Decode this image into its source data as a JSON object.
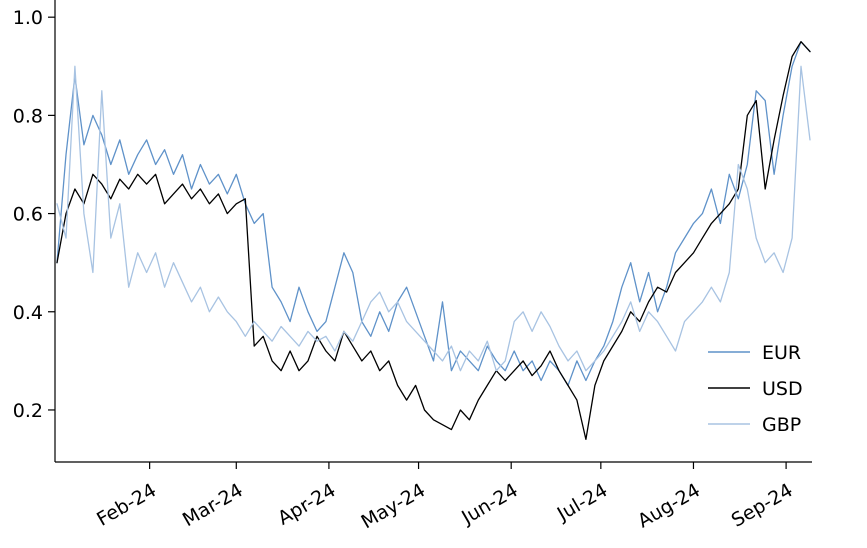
{
  "figure": {
    "background": "#ffffff",
    "axis_color": "#000000",
    "text_color": "#000000"
  },
  "chart_data": {
    "type": "line",
    "title": "",
    "xlabel": "",
    "ylabel": "",
    "grid": false,
    "legend": {
      "position": "lower-right",
      "frame": false
    },
    "x_unit": "days since Jan-1-2024",
    "x_domain_days": [
      0,
      252
    ],
    "x_step_days": 3,
    "ylim": [
      0.094,
      1.035
    ],
    "y_ticks": [
      0.2,
      0.4,
      0.6,
      0.8,
      1.0
    ],
    "x_ticks": [
      {
        "label": "Feb-24",
        "day": 31
      },
      {
        "label": "Mar-24",
        "day": 60
      },
      {
        "label": "Apr-24",
        "day": 91
      },
      {
        "label": "May-24",
        "day": 121
      },
      {
        "label": "Jun-24",
        "day": 152
      },
      {
        "label": "Jul-24",
        "day": 182
      },
      {
        "label": "Aug-24",
        "day": 213
      },
      {
        "label": "Sep-24",
        "day": 244
      }
    ],
    "series": [
      {
        "name": "EUR",
        "color": "#5f92c9",
        "values": [
          0.5,
          0.72,
          0.88,
          0.74,
          0.8,
          0.76,
          0.7,
          0.75,
          0.68,
          0.72,
          0.75,
          0.7,
          0.73,
          0.68,
          0.72,
          0.65,
          0.7,
          0.66,
          0.68,
          0.64,
          0.68,
          0.62,
          0.58,
          0.6,
          0.45,
          0.42,
          0.38,
          0.45,
          0.4,
          0.36,
          0.38,
          0.45,
          0.52,
          0.48,
          0.38,
          0.35,
          0.4,
          0.36,
          0.42,
          0.45,
          0.4,
          0.35,
          0.3,
          0.42,
          0.28,
          0.32,
          0.3,
          0.28,
          0.33,
          0.3,
          0.28,
          0.32,
          0.28,
          0.3,
          0.26,
          0.3,
          0.28,
          0.25,
          0.3,
          0.26,
          0.3,
          0.33,
          0.38,
          0.45,
          0.5,
          0.42,
          0.48,
          0.4,
          0.45,
          0.52,
          0.55,
          0.58,
          0.6,
          0.65,
          0.58,
          0.68,
          0.63,
          0.7,
          0.85,
          0.83,
          0.68,
          0.8,
          0.9,
          0.95,
          0.93
        ]
      },
      {
        "name": "USD",
        "color": "#000000",
        "values": [
          0.5,
          0.6,
          0.65,
          0.62,
          0.68,
          0.66,
          0.63,
          0.67,
          0.65,
          0.68,
          0.66,
          0.68,
          0.62,
          0.64,
          0.66,
          0.63,
          0.65,
          0.62,
          0.64,
          0.6,
          0.62,
          0.63,
          0.33,
          0.35,
          0.3,
          0.28,
          0.32,
          0.28,
          0.3,
          0.35,
          0.32,
          0.3,
          0.36,
          0.33,
          0.3,
          0.32,
          0.28,
          0.3,
          0.25,
          0.22,
          0.25,
          0.2,
          0.18,
          0.17,
          0.16,
          0.2,
          0.18,
          0.22,
          0.25,
          0.28,
          0.26,
          0.28,
          0.3,
          0.27,
          0.29,
          0.32,
          0.28,
          0.25,
          0.22,
          0.14,
          0.25,
          0.3,
          0.33,
          0.36,
          0.4,
          0.38,
          0.42,
          0.45,
          0.44,
          0.48,
          0.5,
          0.52,
          0.55,
          0.58,
          0.6,
          0.62,
          0.65,
          0.8,
          0.83,
          0.65,
          0.75,
          0.84,
          0.92,
          0.95,
          0.93
        ]
      },
      {
        "name": "GBP",
        "color": "#a8c3e2",
        "values": [
          0.62,
          0.55,
          0.9,
          0.6,
          0.48,
          0.85,
          0.55,
          0.62,
          0.45,
          0.52,
          0.48,
          0.52,
          0.45,
          0.5,
          0.46,
          0.42,
          0.45,
          0.4,
          0.43,
          0.4,
          0.38,
          0.35,
          0.38,
          0.36,
          0.34,
          0.37,
          0.35,
          0.33,
          0.36,
          0.34,
          0.35,
          0.32,
          0.36,
          0.34,
          0.38,
          0.42,
          0.44,
          0.4,
          0.42,
          0.38,
          0.36,
          0.34,
          0.32,
          0.3,
          0.33,
          0.28,
          0.32,
          0.3,
          0.34,
          0.28,
          0.3,
          0.38,
          0.4,
          0.36,
          0.4,
          0.37,
          0.33,
          0.3,
          0.32,
          0.28,
          0.3,
          0.32,
          0.35,
          0.38,
          0.42,
          0.36,
          0.4,
          0.38,
          0.35,
          0.32,
          0.38,
          0.4,
          0.42,
          0.45,
          0.42,
          0.48,
          0.7,
          0.65,
          0.55,
          0.5,
          0.52,
          0.48,
          0.55,
          0.9,
          0.75
        ]
      }
    ]
  }
}
